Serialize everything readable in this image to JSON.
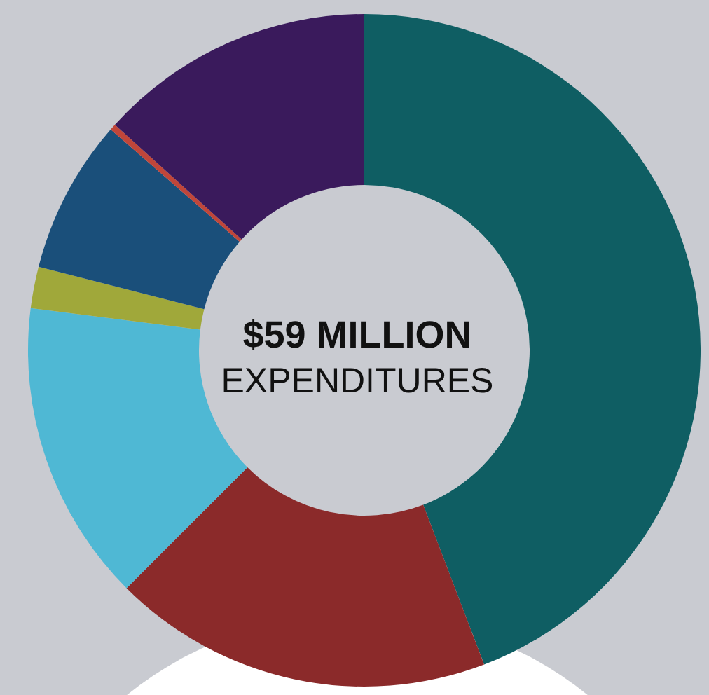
{
  "chart_data": {
    "type": "donut",
    "title": "$59 MILLION",
    "subtitle": "EXPENDITURES",
    "categories": [
      null,
      null,
      null,
      null,
      null,
      null,
      null
    ],
    "values": [
      44.2,
      18.3,
      14.5,
      2,
      7.4,
      0.3,
      13.3
    ],
    "colors": [
      "#0f5e63",
      "#8b2a2a",
      "#4fb8d4",
      "#a0a83a",
      "#1a4f7a",
      "#c0463a",
      "#3a1a5c"
    ]
  }
}
